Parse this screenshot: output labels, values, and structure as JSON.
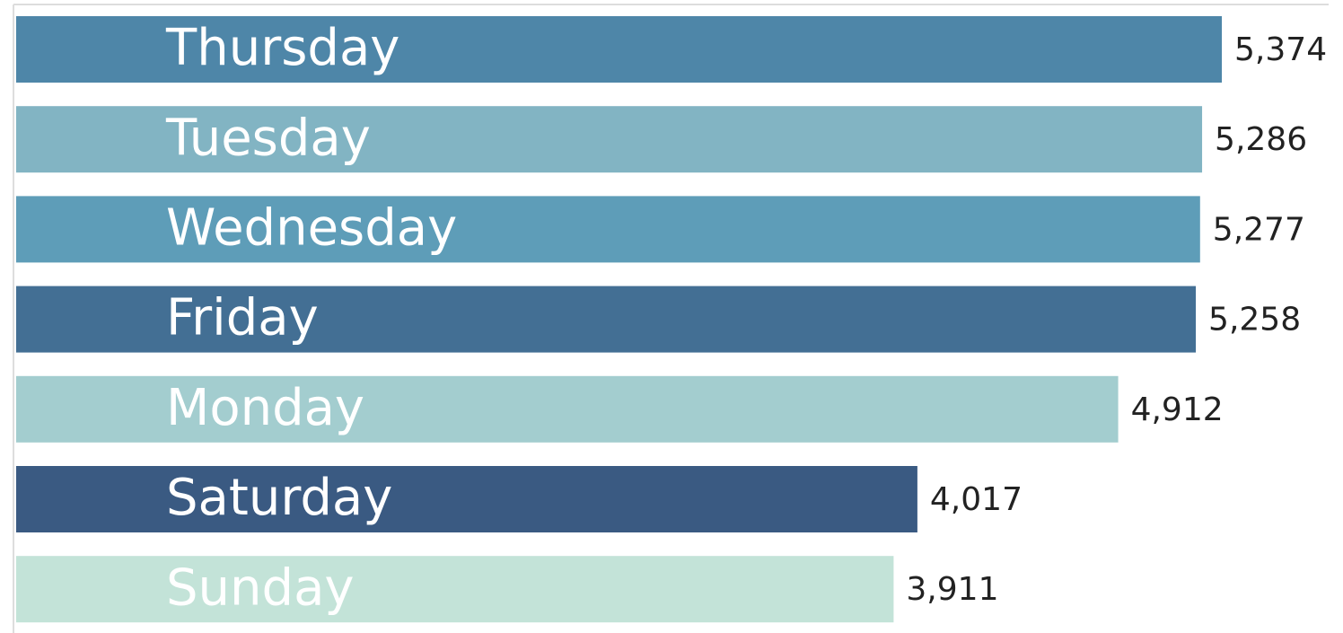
{
  "chart_data": {
    "type": "bar",
    "orientation": "horizontal",
    "categories": [
      "Thursday",
      "Tuesday",
      "Wednesday",
      "Friday",
      "Monday",
      "Saturday",
      "Sunday"
    ],
    "values": [
      5374,
      5286,
      5277,
      5258,
      4912,
      4017,
      3911
    ],
    "value_labels": [
      "5,374",
      "5,286",
      "5,277",
      "5,258",
      "4,912",
      "4,017",
      "3,911"
    ],
    "colors": [
      "#4e86a8",
      "#82b4c3",
      "#5e9db8",
      "#436f94",
      "#a3cdcf",
      "#3a5a82",
      "#c3e3d8"
    ],
    "xlim": [
      0,
      5850
    ]
  }
}
